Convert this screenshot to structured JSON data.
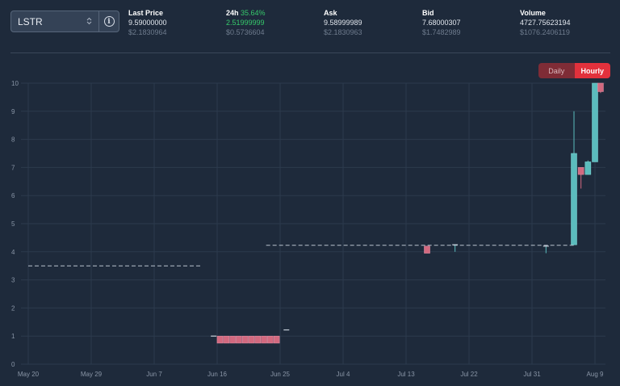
{
  "pair_selector": {
    "value": "LSTR",
    "chevron_icon": "chevron-up-down-icon",
    "info_icon": "info-icon"
  },
  "stats": {
    "last_price": {
      "label": "Last Price",
      "value": "9.59000000",
      "usd": "$2.1830964"
    },
    "change_24h": {
      "label": "24h",
      "percent": "35.64%",
      "value": "2.51999999",
      "usd": "$0.5736604"
    },
    "ask": {
      "label": "Ask",
      "value": "9.58999989",
      "usd": "$2.1830963"
    },
    "bid": {
      "label": "Bid",
      "value": "7.68000307",
      "usd": "$1.7482989"
    },
    "volume": {
      "label": "Volume",
      "value": "4727.75623194",
      "usd": "$1076.2406119"
    }
  },
  "timeframe": {
    "daily": "Daily",
    "hourly": "Hourly",
    "active": "Hourly"
  },
  "colors": {
    "up": "#5bbcbd",
    "down": "#d2697f",
    "accent": "#e2313c",
    "positive": "#36c96b"
  },
  "chart_data": {
    "type": "candlestick",
    "y_ticks": [
      "0",
      "1",
      "2",
      "3",
      "4",
      "5",
      "6",
      "7",
      "8",
      "9",
      "10"
    ],
    "ylim": [
      0,
      10
    ],
    "x_ticks": [
      {
        "label": "May 20",
        "day": 0
      },
      {
        "label": "May 29",
        "day": 9
      },
      {
        "label": "Jun 7",
        "day": 18
      },
      {
        "label": "Jun 16",
        "day": 27
      },
      {
        "label": "Jun 25",
        "day": 36
      },
      {
        "label": "Jul 4",
        "day": 45
      },
      {
        "label": "Jul 13",
        "day": 54
      },
      {
        "label": "Jul 22",
        "day": 63
      },
      {
        "label": "Jul 31",
        "day": 72
      },
      {
        "label": "Aug 9",
        "day": 81
      }
    ],
    "grid": true,
    "dashed_levels": [
      {
        "from": 0,
        "to": 24.6,
        "value": 3.5
      },
      {
        "from": 34,
        "to": 78,
        "value": 4.23
      }
    ],
    "candles": [
      {
        "day": 26.5,
        "open": 1.0,
        "close": 1.0,
        "high": 1.0,
        "low": 1.0
      },
      {
        "day": 27.4,
        "open": 1.0,
        "close": 0.75,
        "high": 1.0,
        "low": 0.75
      },
      {
        "day": 28.3,
        "open": 1.0,
        "close": 0.75,
        "high": 1.0,
        "low": 0.75
      },
      {
        "day": 29.2,
        "open": 1.0,
        "close": 0.75,
        "high": 1.0,
        "low": 0.75
      },
      {
        "day": 30.1,
        "open": 1.0,
        "close": 0.75,
        "high": 1.0,
        "low": 0.75
      },
      {
        "day": 31.0,
        "open": 1.0,
        "close": 0.75,
        "high": 1.0,
        "low": 0.75
      },
      {
        "day": 31.9,
        "open": 1.0,
        "close": 0.75,
        "high": 1.0,
        "low": 0.75
      },
      {
        "day": 32.8,
        "open": 1.0,
        "close": 0.75,
        "high": 1.0,
        "low": 0.75
      },
      {
        "day": 33.7,
        "open": 1.0,
        "close": 0.75,
        "high": 1.0,
        "low": 0.75
      },
      {
        "day": 34.6,
        "open": 1.0,
        "close": 0.75,
        "high": 1.0,
        "low": 0.75
      },
      {
        "day": 35.5,
        "open": 1.0,
        "close": 0.75,
        "high": 1.0,
        "low": 0.75
      },
      {
        "day": 36.9,
        "open": 1.22,
        "close": 1.22,
        "high": 1.22,
        "low": 1.22
      },
      {
        "day": 57.0,
        "open": 4.2,
        "close": 3.95,
        "high": 4.2,
        "low": 3.95
      },
      {
        "day": 61.0,
        "open": 4.25,
        "close": 4.25,
        "high": 4.25,
        "low": 4.0
      },
      {
        "day": 74.0,
        "open": 4.2,
        "close": 4.2,
        "high": 4.2,
        "low": 3.95
      },
      {
        "day": 78.0,
        "open": 4.25,
        "close": 7.5,
        "high": 9.0,
        "low": 4.25
      },
      {
        "day": 79.0,
        "open": 7.0,
        "close": 6.75,
        "high": 7.0,
        "low": 6.25
      },
      {
        "day": 80.0,
        "open": 6.75,
        "close": 7.2,
        "high": 7.25,
        "low": 6.75
      },
      {
        "day": 81.0,
        "open": 7.2,
        "close": 10.0,
        "high": 10.0,
        "low": 7.2
      },
      {
        "day": 81.8,
        "open": 10.0,
        "close": 9.7,
        "high": 10.0,
        "low": 9.65
      }
    ]
  }
}
